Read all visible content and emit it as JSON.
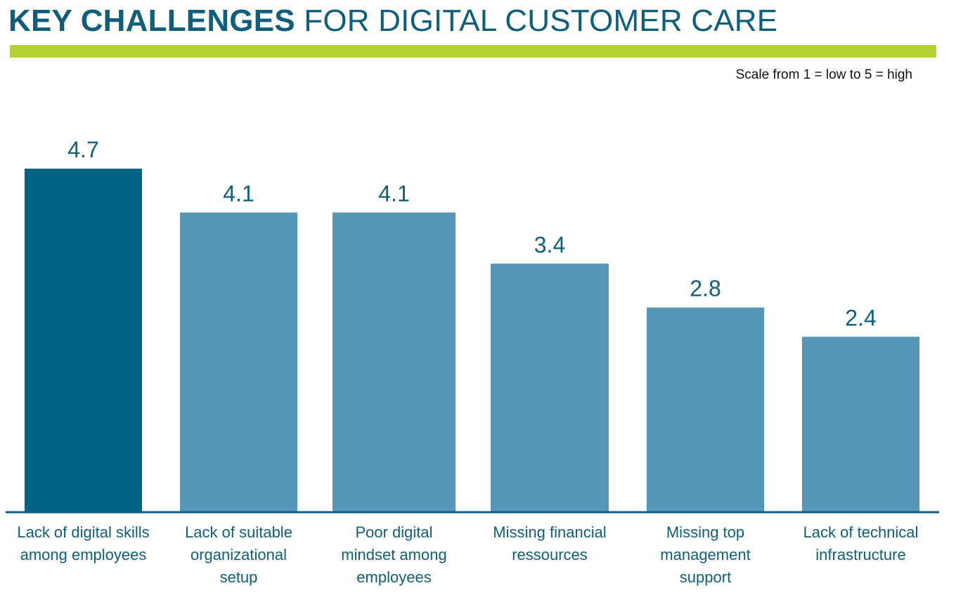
{
  "title": {
    "bold": "KEY CHALLENGES",
    "regular": "FOR DIGITAL CUSTOMER CARE"
  },
  "scale_note": "Scale from 1 = low to 5 = high",
  "colors": {
    "title": "#0f5f7c",
    "accent": "#b5d334",
    "bar_highlight": "#006384",
    "bar": "#5596b9",
    "axis": "#0f5f7c",
    "value_label": "#0f5f7c",
    "category_label": "#0f5f7c"
  },
  "chart_data": {
    "type": "bar",
    "title": "KEY CHALLENGES FOR DIGITAL CUSTOMER CARE",
    "subtitle": "Scale from 1 = low to 5 = high",
    "xlabel": "",
    "ylabel": "",
    "categories": [
      [
        "Lack of digital skills",
        "among employees"
      ],
      [
        "Lack of suitable",
        "organizational",
        "setup"
      ],
      [
        "Poor digital",
        "mindset among",
        "employees"
      ],
      [
        "Missing financial",
        "ressources"
      ],
      [
        "Missing top",
        "management",
        "support"
      ],
      [
        "Lack of technical",
        "infrastructure"
      ]
    ],
    "values": [
      4.7,
      4.1,
      4.1,
      3.4,
      2.8,
      2.4
    ],
    "value_labels": [
      "4.7",
      "4.1",
      "4.1",
      "3.4",
      "2.8",
      "2.4"
    ],
    "highlight_index": 0,
    "ylim": [
      0,
      4.7
    ],
    "grid": false,
    "legend": "none"
  }
}
